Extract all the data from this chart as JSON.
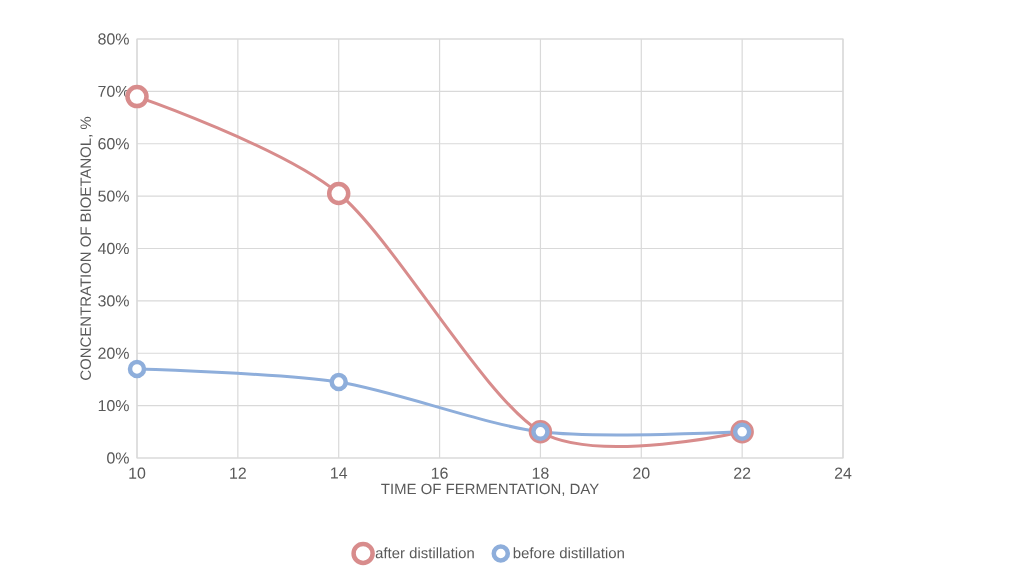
{
  "chart_data": {
    "type": "line",
    "xlabel": "TIME OF FERMENTATION, DAY",
    "ylabel": "CONCENTRATION OF BIOETANOL, %",
    "x": [
      10,
      14,
      18,
      22
    ],
    "series": [
      {
        "name": "after distillation",
        "color": "#d88c8c",
        "values": [
          69,
          50.5,
          5,
          5
        ]
      },
      {
        "name": "before distillation",
        "color": "#8eaedb",
        "values": [
          17,
          14.5,
          5,
          5
        ]
      }
    ],
    "xlim": [
      10,
      24
    ],
    "xticks": [
      10,
      12,
      14,
      16,
      18,
      20,
      22,
      24
    ],
    "ylim": [
      0,
      80
    ],
    "yticks": [
      {
        "value": 0,
        "label": "0%"
      },
      {
        "value": 10,
        "label": "10%"
      },
      {
        "value": 20,
        "label": "20%"
      },
      {
        "value": 30,
        "label": "30%"
      },
      {
        "value": 40,
        "label": "40%"
      },
      {
        "value": 50,
        "label": "50%"
      },
      {
        "value": 60,
        "label": "60%"
      },
      {
        "value": 70,
        "label": "70%"
      },
      {
        "value": 80,
        "label": "80%"
      }
    ],
    "grid": true,
    "legend": "bottom",
    "marker": "circle",
    "line_style": "solid"
  }
}
